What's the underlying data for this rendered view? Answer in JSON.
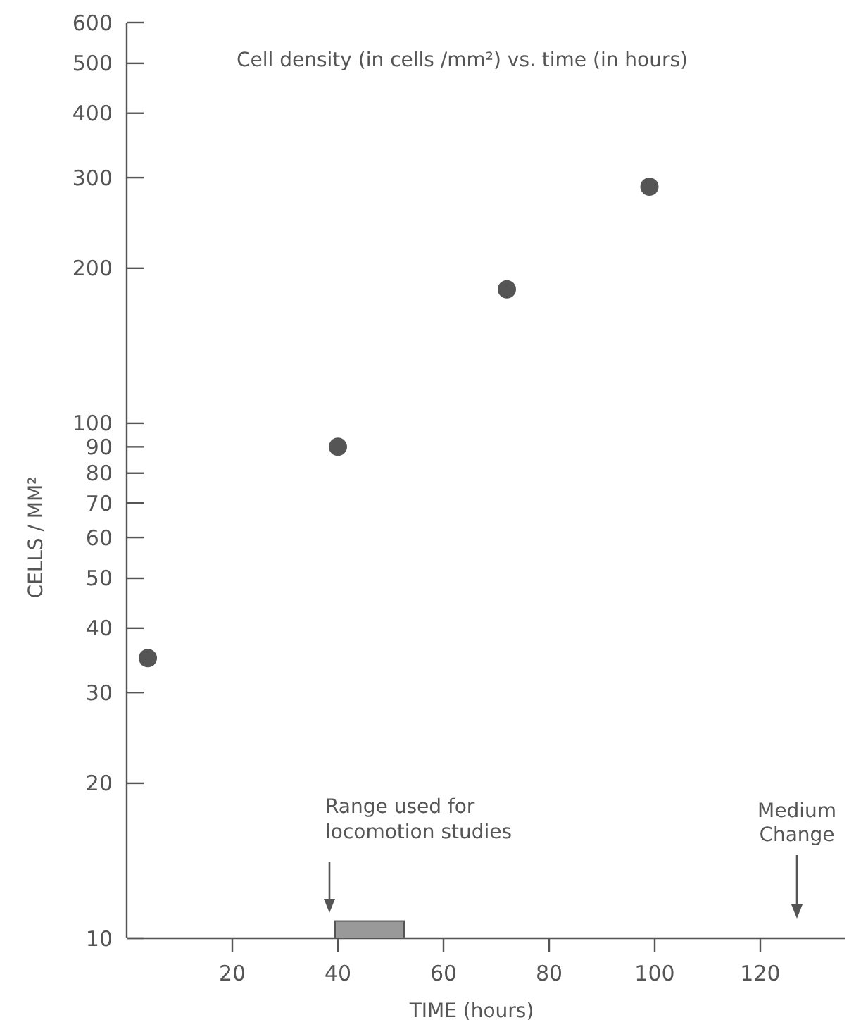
{
  "chart_data": {
    "type": "scatter",
    "title": "Cell density (in cells /mm²) vs. time (in hours)",
    "xlabel": "TIME (hours)",
    "ylabel": "CELLS / MM²",
    "x": [
      4,
      40,
      72,
      99
    ],
    "series": [
      {
        "color": "#555555",
        "values": [
          35,
          90,
          182,
          288
        ]
      },
      {
        "type": "bar",
        "x": [
          46
        ],
        "color": "#999999",
        "values": [
          10.8
        ]
      }
    ],
    "xlim": [
      0,
      136
    ],
    "xticks": [
      20,
      40,
      60,
      80,
      100,
      120
    ],
    "ylim": [
      10,
      600
    ],
    "yticks": [
      10,
      20,
      30,
      40,
      50,
      60,
      70,
      80,
      90,
      100,
      200,
      300,
      400,
      500,
      600
    ],
    "log": "y",
    "grid": false,
    "marker": "circle",
    "annotations": [
      "Range used for locomotion studies",
      "Medium Change"
    ]
  }
}
